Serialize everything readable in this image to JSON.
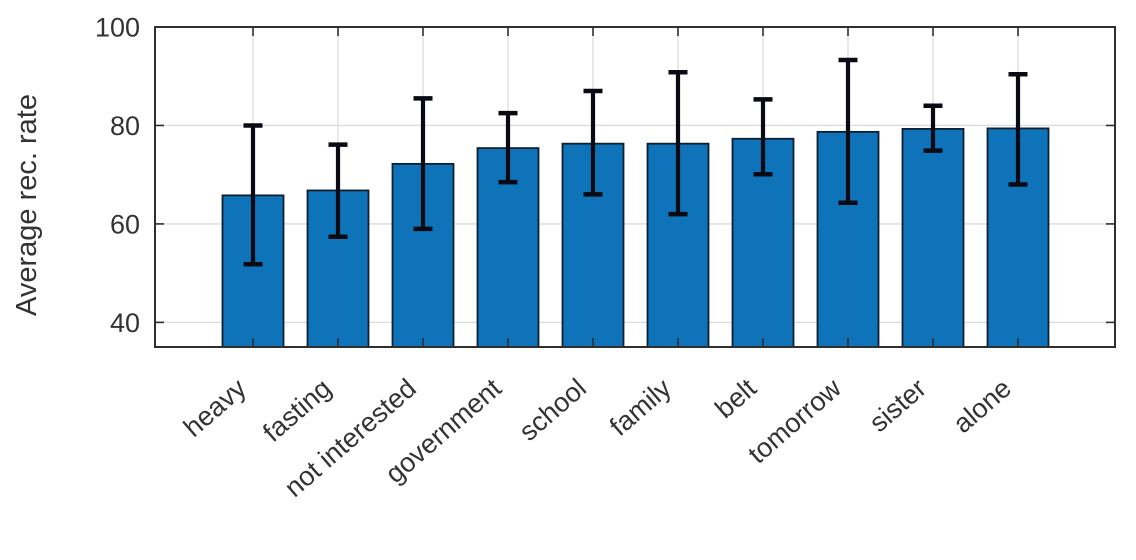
{
  "chart_data": {
    "type": "bar",
    "title": "",
    "xlabel": "",
    "ylabel": "Average rec. rate",
    "categories": [
      "heavy",
      "fasting",
      "not interested",
      "government",
      "school",
      "family",
      "belt",
      "tomorrow",
      "sister",
      "alone"
    ],
    "values": [
      65.8,
      66.8,
      72.2,
      75.4,
      76.3,
      76.3,
      77.3,
      78.7,
      79.3,
      79.4
    ],
    "error_low": [
      51.8,
      57.4,
      59.0,
      68.5,
      66.0,
      62.0,
      70.1,
      64.3,
      74.9,
      68.0
    ],
    "error_high": [
      80.0,
      76.1,
      85.5,
      82.5,
      87.0,
      90.8,
      85.3,
      93.3,
      84.0,
      90.4
    ],
    "ylim": [
      35,
      100
    ],
    "yticks": [
      40,
      60,
      80,
      100
    ],
    "grid": true,
    "legend": "none",
    "x_tick_rotation_deg": 41,
    "colors": {
      "bar_fill": "#0f73b9",
      "bar_edge": "#0d1f30",
      "error_bar": "#0a0a14",
      "grid": "#dcdcdc",
      "axis": "#2f2f2f",
      "text": "#333333",
      "background": "#ffffff"
    }
  }
}
